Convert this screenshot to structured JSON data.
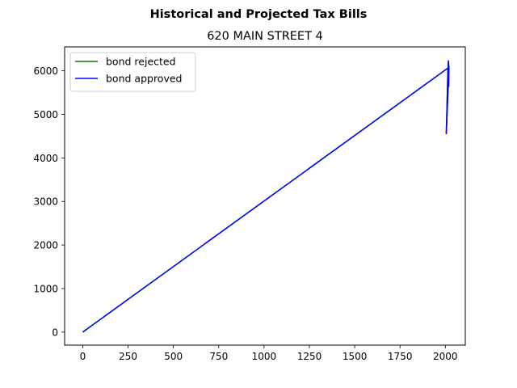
{
  "chart_data": {
    "type": "line",
    "suptitle": "Historical and Projected Tax Bills",
    "title": "620 MAIN STREET  4",
    "xlabel": "",
    "ylabel": "",
    "xlim": [
      -100,
      2110
    ],
    "ylim": [
      -300,
      6550
    ],
    "xticks": [
      0,
      250,
      500,
      750,
      1000,
      1250,
      1500,
      1750,
      2000
    ],
    "yticks": [
      0,
      1000,
      2000,
      3000,
      4000,
      5000,
      6000
    ],
    "grid": false,
    "legend_position": "upper-left",
    "series": [
      {
        "name": "bond rejected",
        "color": "#008000",
        "x": [
          0,
          2020,
          2005,
          2008,
          2011,
          2014,
          2017,
          2020
        ],
        "y": [
          0,
          6080,
          4560,
          5000,
          5500,
          6000,
          6230,
          6080
        ]
      },
      {
        "name": "bond approved",
        "color": "#0000ff",
        "x": [
          0,
          2020,
          2005,
          2008,
          2011,
          2014,
          2017,
          2019,
          2020
        ],
        "y": [
          0,
          6080,
          4560,
          5000,
          5500,
          6000,
          6230,
          5640,
          6080
        ]
      }
    ]
  }
}
